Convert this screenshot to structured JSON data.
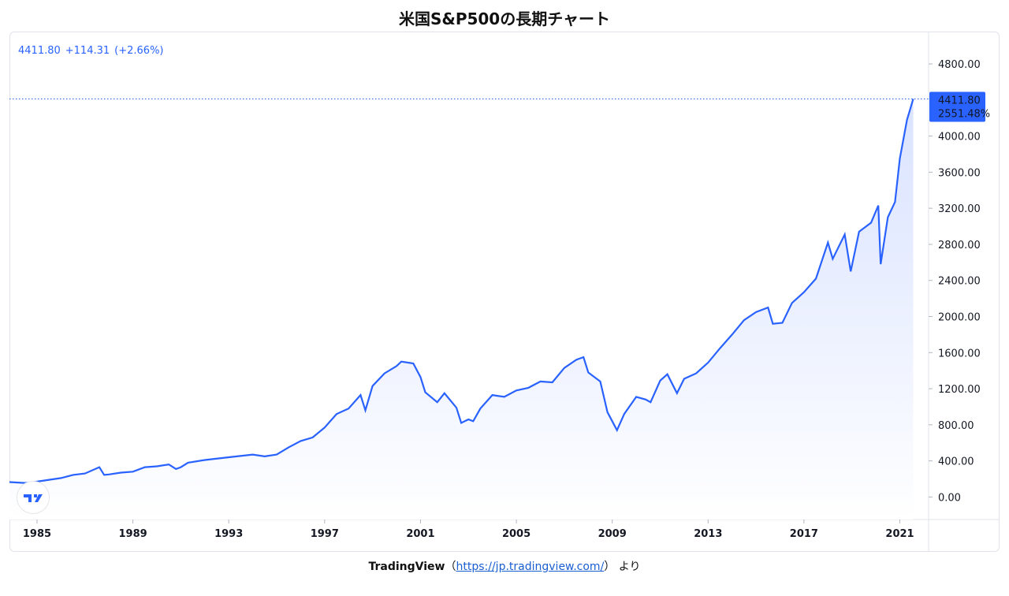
{
  "title": "米国S&P500の長期チャート",
  "legend": {
    "price": "4411.80",
    "change": "+114.31",
    "change_pct": "(+2.66%)"
  },
  "last_label": {
    "price": "4411.80",
    "pct": "2551.48%"
  },
  "footer": {
    "name": "TradingView",
    "open": "（",
    "link": "https://jp.tradingview.com/",
    "close": "）",
    "suffix": "より"
  },
  "colors": {
    "line": "#2962ff",
    "label_bg": "#2962ff",
    "fill_top": "#d6e0ff",
    "fill_bottom": "#ffffff"
  },
  "logo_icon": "tradingview-logo-icon",
  "chart_data": {
    "type": "area",
    "title": "",
    "xlabel": "",
    "ylabel": "",
    "xlim": [
      1983.85,
      2022.2
    ],
    "ylim": [
      -250,
      5150
    ],
    "x_ticks": [
      "1985",
      "1989",
      "1993",
      "1997",
      "2001",
      "2005",
      "2009",
      "2013",
      "2017",
      "2021"
    ],
    "y_ticks": [
      "0.00",
      "400.00",
      "800.00",
      "1200.00",
      "1600.00",
      "2000.00",
      "2400.00",
      "2800.00",
      "3200.00",
      "3600.00",
      "4000.00",
      "4800.00"
    ],
    "grid": false,
    "last_value": 4411.8,
    "series": [
      {
        "x": [
          1983.85,
          1984.5,
          1985,
          1985.5,
          1986,
          1986.5,
          1987,
          1987.6,
          1987.8,
          1988,
          1988.5,
          1989,
          1989.5,
          1990,
          1990.5,
          1990.8,
          1991,
          1991.3,
          1992,
          1993,
          1994,
          1994.5,
          1995,
          1995.5,
          1996,
          1996.5,
          1997,
          1997.5,
          1998,
          1998.5,
          1998.7,
          1999,
          1999.5,
          2000,
          2000.2,
          2000.7,
          2001,
          2001.2,
          2001.7,
          2002,
          2002.5,
          2002.7,
          2003,
          2003.2,
          2003.5,
          2004,
          2004.5,
          2005,
          2005.5,
          2006,
          2006.5,
          2007,
          2007.5,
          2007.8,
          2008,
          2008.5,
          2008.8,
          2009.2,
          2009.5,
          2010,
          2010.4,
          2010.6,
          2011,
          2011.3,
          2011.7,
          2012,
          2012.5,
          2013,
          2013.5,
          2014,
          2014.5,
          2015,
          2015.5,
          2015.7,
          2016.1,
          2016.5,
          2017,
          2017.5,
          2018,
          2018.2,
          2018.7,
          2018.95,
          2019.3,
          2019.8,
          2020.1,
          2020.2,
          2020.5,
          2020.8,
          2021,
          2021.3,
          2021.56
        ],
        "y": [
          165,
          155,
          170,
          190,
          210,
          245,
          260,
          330,
          245,
          250,
          270,
          280,
          330,
          340,
          360,
          310,
          330,
          380,
          410,
          440,
          470,
          450,
          470,
          550,
          620,
          660,
          770,
          920,
          980,
          1130,
          960,
          1230,
          1370,
          1450,
          1500,
          1480,
          1330,
          1160,
          1050,
          1150,
          990,
          820,
          860,
          840,
          980,
          1130,
          1110,
          1180,
          1210,
          1280,
          1270,
          1430,
          1520,
          1550,
          1380,
          1280,
          940,
          740,
          920,
          1110,
          1080,
          1050,
          1290,
          1360,
          1150,
          1310,
          1370,
          1490,
          1650,
          1800,
          1960,
          2050,
          2100,
          1920,
          1930,
          2150,
          2270,
          2420,
          2820,
          2640,
          2910,
          2500,
          2940,
          3040,
          3230,
          2580,
          3100,
          3270,
          3750,
          4180,
          4411.8
        ]
      }
    ]
  }
}
